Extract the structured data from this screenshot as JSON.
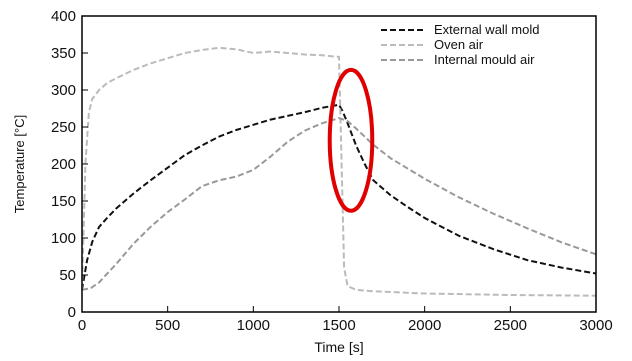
{
  "chart_data": {
    "type": "line",
    "xlabel": "Time [s]",
    "ylabel": "Temperature [°C]",
    "xlim": [
      0,
      3000
    ],
    "ylim": [
      0,
      400
    ],
    "xticks": [
      0,
      500,
      1000,
      1500,
      2000,
      2500,
      3000
    ],
    "yticks": [
      0,
      50,
      100,
      150,
      200,
      250,
      300,
      350,
      400
    ],
    "grid": false,
    "legend_position": "top-right",
    "series": [
      {
        "name": "External wall mold",
        "color": "#111111",
        "dash": "dashed",
        "x": [
          0,
          30,
          60,
          100,
          150,
          200,
          300,
          400,
          500,
          600,
          700,
          800,
          900,
          1000,
          1100,
          1200,
          1300,
          1400,
          1450,
          1500,
          1520,
          1550,
          1600,
          1650,
          1700,
          1800,
          1900,
          2000,
          2200,
          2400,
          2600,
          2800,
          3000
        ],
        "y": [
          30,
          70,
          95,
          115,
          128,
          140,
          160,
          178,
          195,
          212,
          225,
          237,
          246,
          253,
          260,
          265,
          270,
          276,
          278,
          280,
          272,
          255,
          225,
          200,
          178,
          158,
          142,
          127,
          103,
          85,
          70,
          60,
          52
        ]
      },
      {
        "name": "Oven air",
        "color": "#bbbbbb",
        "dash": "dashed",
        "x": [
          0,
          20,
          40,
          60,
          100,
          150,
          200,
          300,
          400,
          500,
          600,
          700,
          800,
          900,
          1000,
          1100,
          1200,
          1300,
          1400,
          1480,
          1500,
          1515,
          1530,
          1550,
          1600,
          1700,
          2000,
          2500,
          3000
        ],
        "y": [
          30,
          200,
          270,
          288,
          300,
          310,
          316,
          327,
          336,
          343,
          350,
          354,
          357,
          355,
          350,
          352,
          350,
          348,
          347,
          345,
          345,
          200,
          60,
          35,
          30,
          28,
          25,
          23,
          22
        ]
      },
      {
        "name": "Internal mould air",
        "color": "#999999",
        "dash": "dashed",
        "x": [
          0,
          50,
          100,
          200,
          300,
          400,
          500,
          600,
          700,
          800,
          900,
          1000,
          1100,
          1200,
          1300,
          1400,
          1500,
          1550,
          1600,
          1700,
          1800,
          2000,
          2200,
          2400,
          2600,
          2800,
          3000
        ],
        "y": [
          30,
          32,
          40,
          65,
          92,
          115,
          135,
          152,
          170,
          178,
          183,
          192,
          210,
          230,
          245,
          255,
          262,
          258,
          248,
          226,
          208,
          180,
          155,
          133,
          113,
          94,
          78
        ]
      }
    ],
    "annotations": [
      {
        "type": "circle",
        "color": "#e10000",
        "cx": 1570,
        "cy": 232,
        "rx": 360,
        "ry": 68
      }
    ]
  }
}
